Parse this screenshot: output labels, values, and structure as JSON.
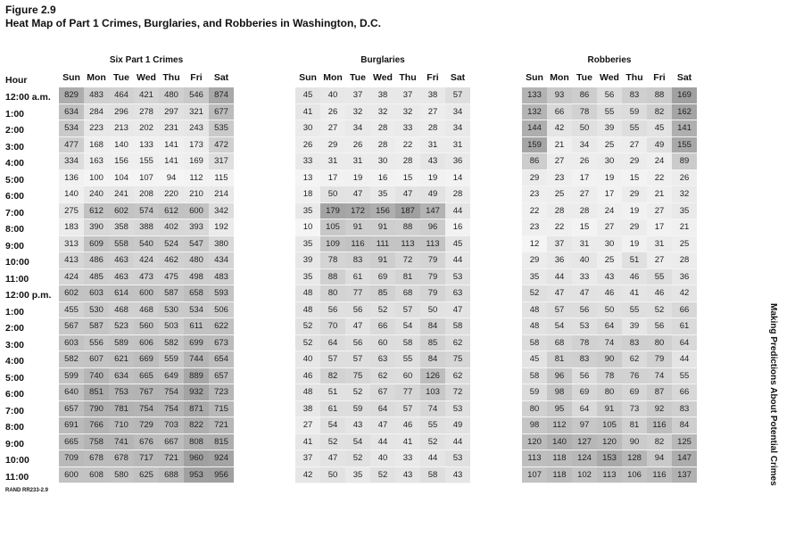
{
  "figure": {
    "label": "Figure 2.9",
    "title": "Heat Map of Part 1 Crimes, Burglaries, and Robberies in Washington, D.C.",
    "source": "RAND RR233-2.9",
    "side_text": "Making Predictions About Potential Crimes"
  },
  "hour_header": "Hour",
  "chart_data": [
    {
      "type": "heatmap",
      "title": "Six Part 1 Crimes",
      "x": [
        "Sun",
        "Mon",
        "Tue",
        "Wed",
        "Thu",
        "Fri",
        "Sat"
      ],
      "y": [
        "12:00 a.m.",
        "1:00",
        "2:00",
        "3:00",
        "4:00",
        "5:00",
        "6:00",
        "7:00",
        "8:00",
        "9:00",
        "10:00",
        "11:00",
        "12:00 p.m.",
        "1:00",
        "2:00",
        "3:00",
        "4:00",
        "5:00",
        "6:00",
        "7:00",
        "8:00",
        "9:00",
        "10:00",
        "11:00"
      ],
      "values": [
        [
          829,
          483,
          464,
          421,
          480,
          546,
          874
        ],
        [
          634,
          284,
          296,
          278,
          297,
          321,
          677
        ],
        [
          534,
          223,
          213,
          202,
          231,
          243,
          535
        ],
        [
          477,
          168,
          140,
          133,
          141,
          173,
          472
        ],
        [
          334,
          163,
          156,
          155,
          141,
          169,
          317
        ],
        [
          136,
          100,
          104,
          107,
          94,
          112,
          115
        ],
        [
          140,
          240,
          241,
          208,
          220,
          210,
          214
        ],
        [
          275,
          612,
          602,
          574,
          612,
          600,
          342
        ],
        [
          183,
          390,
          358,
          388,
          402,
          393,
          192
        ],
        [
          313,
          609,
          558,
          540,
          524,
          547,
          380
        ],
        [
          413,
          486,
          463,
          424,
          462,
          480,
          434
        ],
        [
          424,
          485,
          463,
          473,
          475,
          498,
          483
        ],
        [
          602,
          603,
          614,
          600,
          587,
          658,
          593
        ],
        [
          455,
          530,
          468,
          468,
          530,
          534,
          506
        ],
        [
          567,
          587,
          523,
          560,
          503,
          611,
          622
        ],
        [
          603,
          556,
          589,
          606,
          582,
          699,
          673
        ],
        [
          582,
          607,
          621,
          669,
          559,
          744,
          654
        ],
        [
          599,
          740,
          634,
          665,
          649,
          889,
          657
        ],
        [
          640,
          851,
          753,
          767,
          754,
          932,
          723
        ],
        [
          657,
          790,
          781,
          754,
          754,
          871,
          715
        ],
        [
          691,
          766,
          710,
          729,
          703,
          822,
          721
        ],
        [
          665,
          758,
          741,
          676,
          667,
          808,
          815
        ],
        [
          709,
          678,
          678,
          717,
          721,
          960,
          924
        ],
        [
          600,
          608,
          580,
          625,
          688,
          953,
          956
        ]
      ]
    },
    {
      "type": "heatmap",
      "title": "Burglaries",
      "x": [
        "Sun",
        "Mon",
        "Tue",
        "Wed",
        "Thu",
        "Fri",
        "Sat"
      ],
      "y": [
        "12:00 a.m.",
        "1:00",
        "2:00",
        "3:00",
        "4:00",
        "5:00",
        "6:00",
        "7:00",
        "8:00",
        "9:00",
        "10:00",
        "11:00",
        "12:00 p.m.",
        "1:00",
        "2:00",
        "3:00",
        "4:00",
        "5:00",
        "6:00",
        "7:00",
        "8:00",
        "9:00",
        "10:00",
        "11:00"
      ],
      "values": [
        [
          45,
          40,
          37,
          38,
          37,
          38,
          57
        ],
        [
          41,
          26,
          32,
          32,
          32,
          27,
          34
        ],
        [
          30,
          27,
          34,
          28,
          33,
          28,
          34
        ],
        [
          26,
          29,
          26,
          28,
          22,
          31,
          31
        ],
        [
          33,
          31,
          31,
          30,
          28,
          43,
          36
        ],
        [
          13,
          17,
          19,
          16,
          15,
          19,
          14
        ],
        [
          18,
          50,
          47,
          35,
          47,
          49,
          28
        ],
        [
          35,
          179,
          172,
          156,
          187,
          147,
          44
        ],
        [
          10,
          105,
          91,
          91,
          88,
          96,
          16
        ],
        [
          35,
          109,
          116,
          111,
          113,
          113,
          45
        ],
        [
          39,
          78,
          83,
          91,
          72,
          79,
          44
        ],
        [
          35,
          88,
          61,
          69,
          81,
          79,
          53
        ],
        [
          48,
          80,
          77,
          85,
          68,
          79,
          63
        ],
        [
          48,
          56,
          56,
          52,
          57,
          50,
          47
        ],
        [
          52,
          70,
          47,
          66,
          54,
          84,
          58
        ],
        [
          52,
          64,
          56,
          60,
          58,
          85,
          62
        ],
        [
          40,
          57,
          57,
          63,
          55,
          84,
          75
        ],
        [
          46,
          82,
          75,
          62,
          60,
          126,
          62
        ],
        [
          48,
          51,
          52,
          67,
          77,
          103,
          72
        ],
        [
          38,
          61,
          59,
          64,
          57,
          74,
          53
        ],
        [
          27,
          54,
          43,
          47,
          46,
          55,
          49
        ],
        [
          41,
          52,
          54,
          44,
          41,
          52,
          44
        ],
        [
          37,
          47,
          52,
          40,
          33,
          44,
          53
        ],
        [
          42,
          50,
          35,
          52,
          43,
          58,
          43
        ]
      ]
    },
    {
      "type": "heatmap",
      "title": "Robberies",
      "x": [
        "Sun",
        "Mon",
        "Tue",
        "Wed",
        "Thu",
        "Fri",
        "Sat"
      ],
      "y": [
        "12:00 a.m.",
        "1:00",
        "2:00",
        "3:00",
        "4:00",
        "5:00",
        "6:00",
        "7:00",
        "8:00",
        "9:00",
        "10:00",
        "11:00",
        "12:00 p.m.",
        "1:00",
        "2:00",
        "3:00",
        "4:00",
        "5:00",
        "6:00",
        "7:00",
        "8:00",
        "9:00",
        "10:00",
        "11:00"
      ],
      "values": [
        [
          133,
          93,
          86,
          56,
          83,
          88,
          169
        ],
        [
          132,
          66,
          78,
          55,
          59,
          82,
          162
        ],
        [
          144,
          42,
          50,
          39,
          55,
          45,
          141
        ],
        [
          159,
          21,
          34,
          25,
          27,
          49,
          155
        ],
        [
          86,
          27,
          26,
          30,
          29,
          24,
          89
        ],
        [
          29,
          23,
          17,
          19,
          15,
          22,
          26
        ],
        [
          23,
          25,
          27,
          17,
          29,
          21,
          32
        ],
        [
          22,
          28,
          28,
          24,
          19,
          27,
          35
        ],
        [
          23,
          22,
          15,
          27,
          29,
          17,
          21
        ],
        [
          12,
          37,
          31,
          30,
          19,
          31,
          25
        ],
        [
          29,
          36,
          40,
          25,
          51,
          27,
          28
        ],
        [
          35,
          44,
          33,
          43,
          46,
          55,
          36
        ],
        [
          52,
          47,
          47,
          46,
          41,
          46,
          42
        ],
        [
          48,
          57,
          56,
          50,
          55,
          52,
          66
        ],
        [
          48,
          54,
          53,
          64,
          39,
          56,
          61
        ],
        [
          58,
          68,
          78,
          74,
          83,
          80,
          64
        ],
        [
          45,
          81,
          83,
          90,
          62,
          79,
          44
        ],
        [
          58,
          96,
          56,
          78,
          76,
          74,
          55
        ],
        [
          59,
          98,
          69,
          80,
          69,
          87,
          66
        ],
        [
          80,
          95,
          64,
          91,
          73,
          92,
          83
        ],
        [
          98,
          112,
          97,
          105,
          81,
          116,
          84
        ],
        [
          120,
          140,
          127,
          120,
          90,
          82,
          125
        ],
        [
          113,
          118,
          124,
          153,
          128,
          94,
          147
        ],
        [
          107,
          118,
          102,
          113,
          106,
          116,
          137
        ]
      ]
    }
  ]
}
